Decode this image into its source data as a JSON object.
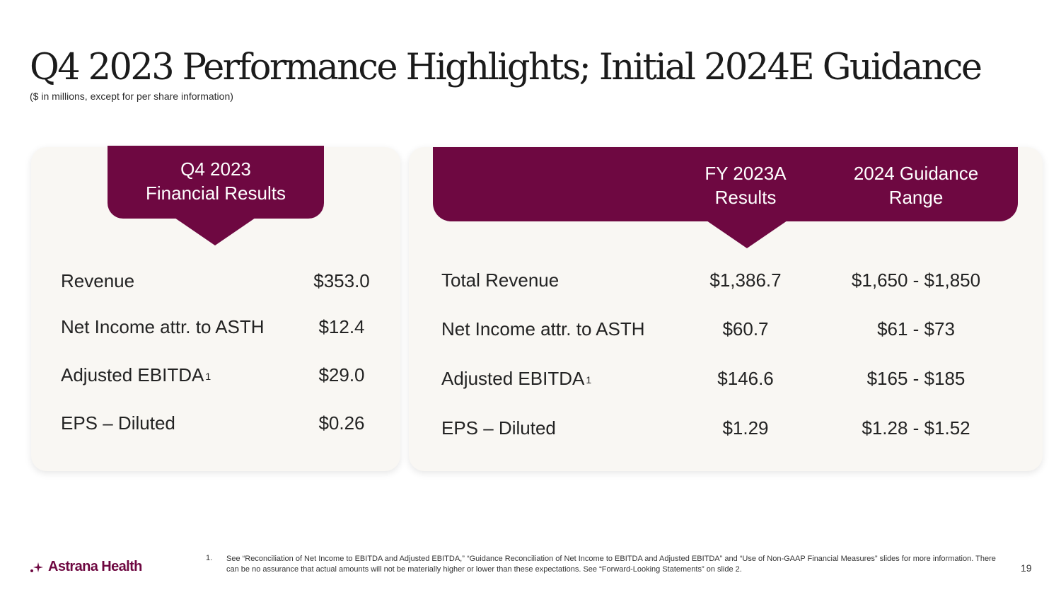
{
  "slide": {
    "title": "Q4 2023 Performance Highlights; Initial 2024E Guidance",
    "subtitle": "($ in millions, except for per share information)"
  },
  "left_panel": {
    "header_line1": "Q4 2023",
    "header_line2": "Financial Results",
    "rows": [
      {
        "label": "Revenue",
        "sup": "",
        "value": "$353.0"
      },
      {
        "label": "Net Income attr. to ASTH",
        "sup": "",
        "value": "$12.4"
      },
      {
        "label": "Adjusted EBITDA",
        "sup": "1",
        "value": "$29.0"
      },
      {
        "label": "EPS – Diluted",
        "sup": "",
        "value": "$0.26"
      }
    ]
  },
  "right_panel": {
    "col1_line1": "FY 2023A",
    "col1_line2": "Results",
    "col2_line1": "2024 Guidance",
    "col2_line2": "Range",
    "rows": [
      {
        "label": "Total Revenue",
        "sup": "",
        "actual": "$1,386.7",
        "guidance": "$1,650 - $1,850"
      },
      {
        "label": "Net Income attr. to ASTH",
        "sup": "",
        "actual": "$60.7",
        "guidance": "$61 - $73"
      },
      {
        "label": "Adjusted EBITDA",
        "sup": "1",
        "actual": "$146.6",
        "guidance": "$165 - $185"
      },
      {
        "label": "EPS – Diluted",
        "sup": "",
        "actual": "$1.29",
        "guidance": "$1.28 - $1.52"
      }
    ]
  },
  "footer": {
    "logo_text": "Astrana Health",
    "footnote_number": "1.",
    "footnote_text": "See “Reconciliation of Net Income to EBITDA and Adjusted EBITDA,” “Guidance Reconciliation of Net Income to EBITDA and Adjusted EBITDA” and “Use of Non-GAAP Financial Measures” slides for more information. There can be no assurance that actual amounts will not be materially higher or lower than these expectations. See “Forward-Looking Statements” on slide 2.",
    "page_number": "19"
  },
  "colors": {
    "brand_maroon": "#6e0841",
    "card_background": "#f9f7f3"
  }
}
